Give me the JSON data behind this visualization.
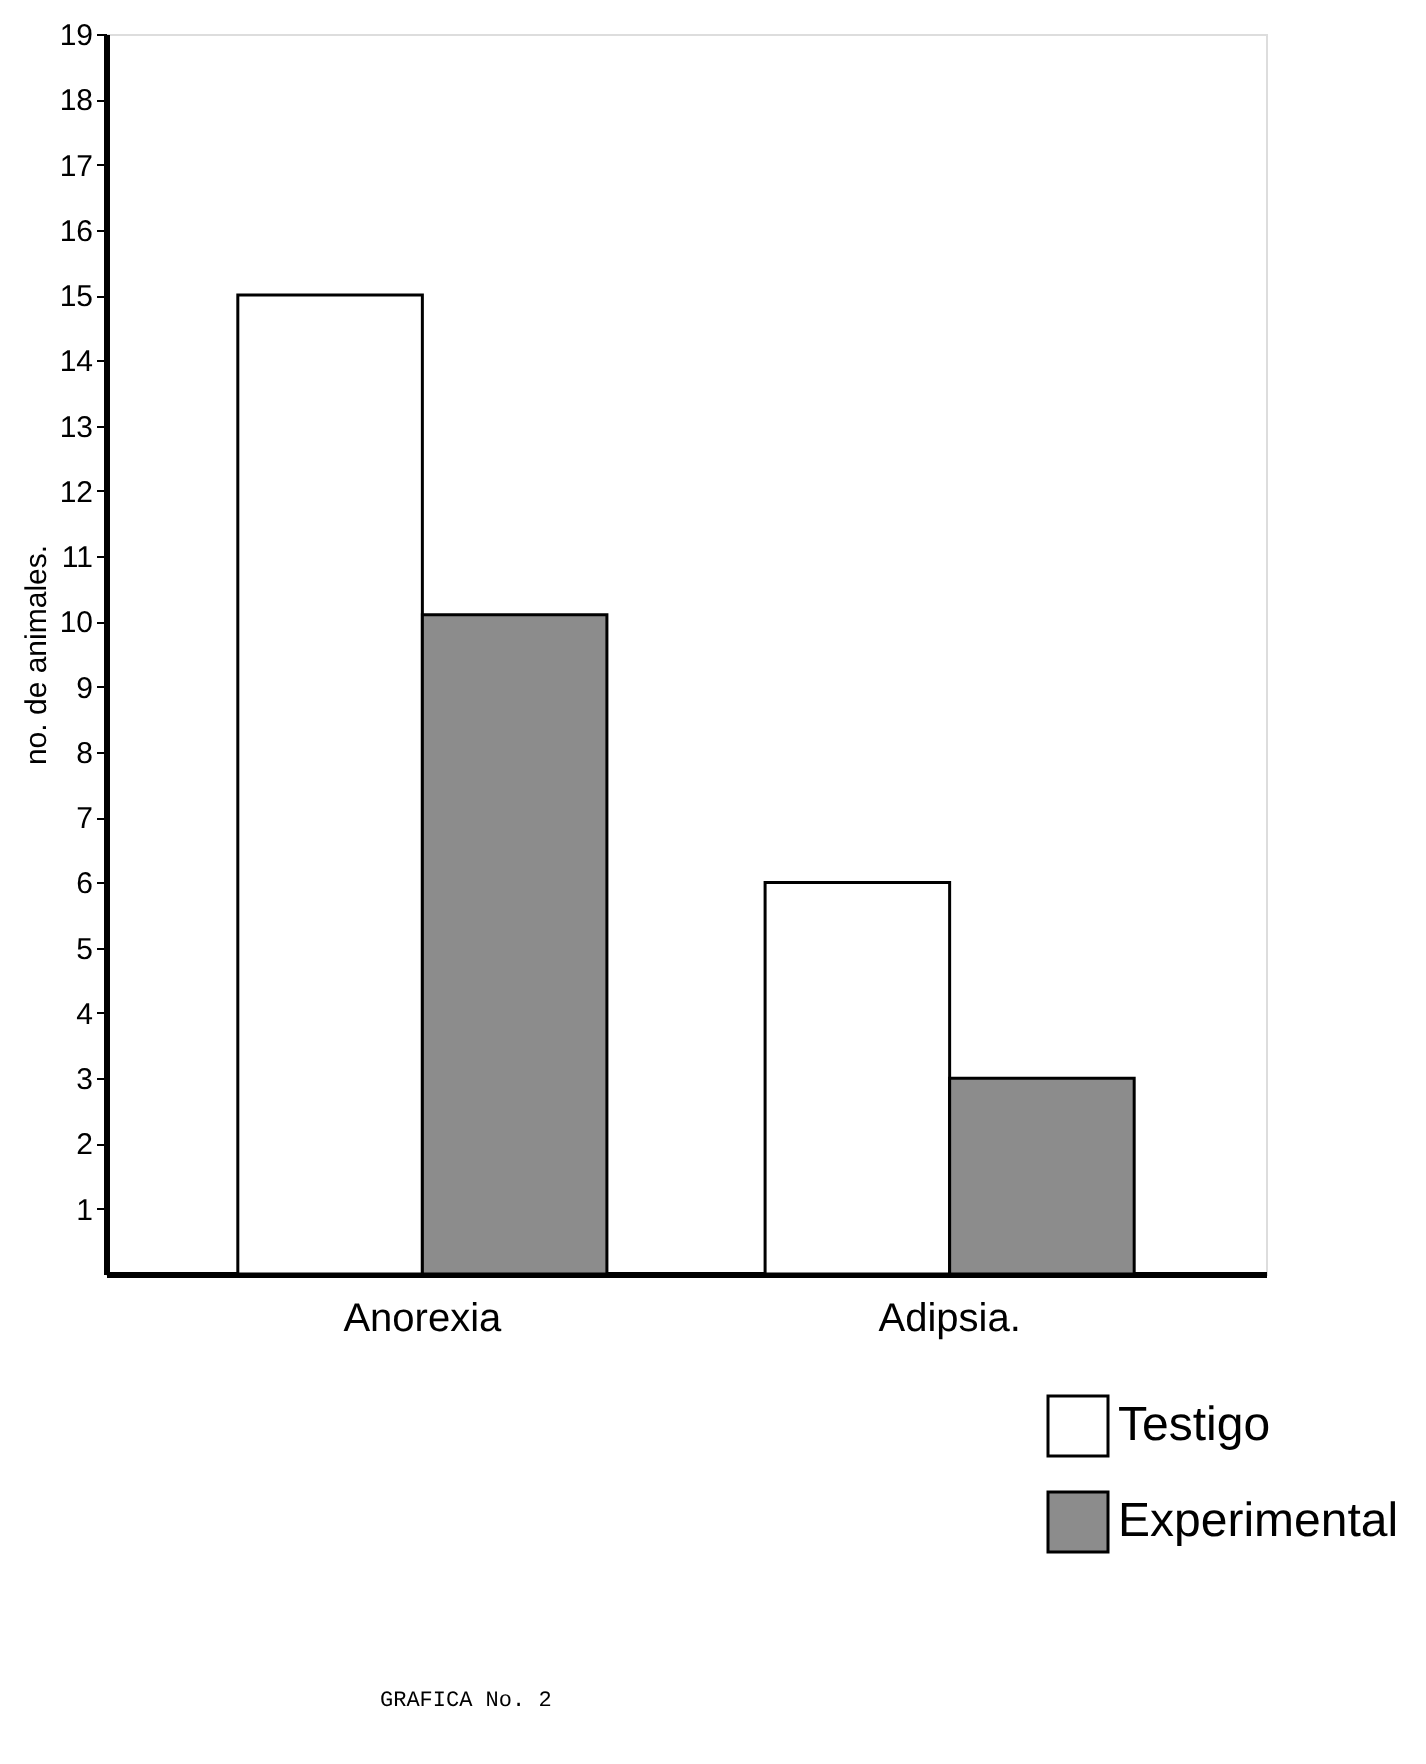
{
  "chart_data": {
    "type": "bar",
    "ylabel": "no. de animales.",
    "categories": [
      "Anorexia",
      "Adipsia."
    ],
    "series": [
      {
        "name": "Testigo",
        "color": "#ffffff",
        "values": [
          15,
          6
        ]
      },
      {
        "name": "Experimental",
        "color": "#8c8c8c",
        "values": [
          10.1,
          3
        ]
      }
    ],
    "ylim": [
      0,
      19
    ],
    "yticks": [
      1,
      2,
      3,
      4,
      5,
      6,
      7,
      8,
      9,
      10,
      11,
      12,
      13,
      14,
      15,
      16,
      17,
      18,
      19
    ],
    "legend": "bottom right",
    "annotations": [
      "GRAFICA No. 2"
    ]
  }
}
